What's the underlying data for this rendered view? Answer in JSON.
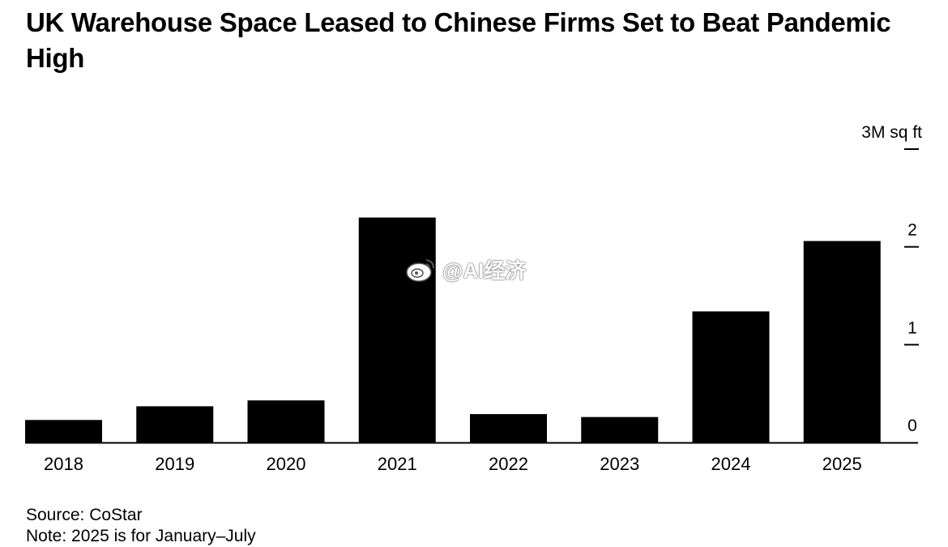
{
  "title": "UK Warehouse Space Leased to Chinese Firms Set to Beat Pandemic High",
  "source": "Source: CoStar",
  "note": "Note: 2025 is for January–July",
  "watermark": "@AI经济",
  "colors": {
    "bar": "#000000",
    "axis": "#000000",
    "background": "#ffffff"
  },
  "chart_data": {
    "type": "bar",
    "categories": [
      "2018",
      "2019",
      "2020",
      "2021",
      "2022",
      "2023",
      "2024",
      "2025"
    ],
    "values": [
      0.23,
      0.37,
      0.43,
      2.3,
      0.29,
      0.26,
      1.34,
      2.06
    ],
    "title": "UK Warehouse Space Leased to Chinese Firms Set to Beat Pandemic High",
    "xlabel": "",
    "ylabel": "",
    "ylim": [
      0,
      3
    ],
    "yticks": [
      0,
      1,
      2,
      3
    ],
    "ytick_labels": [
      "0",
      "1",
      "2",
      "3M sq ft"
    ],
    "y_axis_side": "right",
    "grid": false,
    "legend": "none"
  }
}
